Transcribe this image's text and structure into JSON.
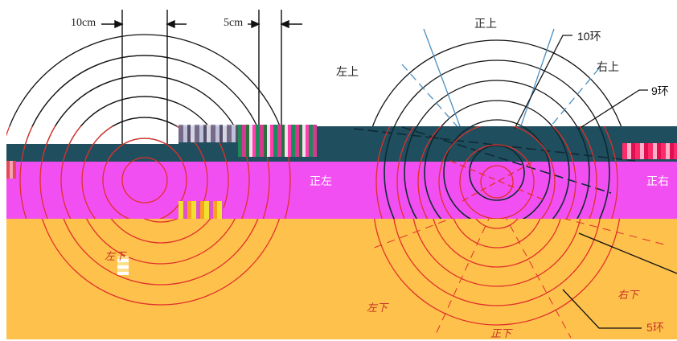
{
  "colors": {
    "band_teal": "#1f4e5e",
    "band_magenta": "#f24ff2",
    "band_orange": "#fec14c",
    "ring_black": "#111111",
    "ring_red": "#e0302a",
    "guide_blue": "#4a8fc0"
  },
  "left_target": {
    "dim_label_1": "10cm",
    "dim_label_2": "5cm",
    "side_label_left": "正左",
    "lower_label": "左下"
  },
  "right_target": {
    "top_label": "正上",
    "top_left_label": "左上",
    "top_right_label": "右上",
    "left_label": "正左",
    "right_label": "正右",
    "bottom_left_label": "左下",
    "bottom_label": "正下",
    "bottom_right_label": "右下",
    "ring_10_label": "10环",
    "ring_9_label": "9环",
    "ring_5_label": "5环"
  }
}
